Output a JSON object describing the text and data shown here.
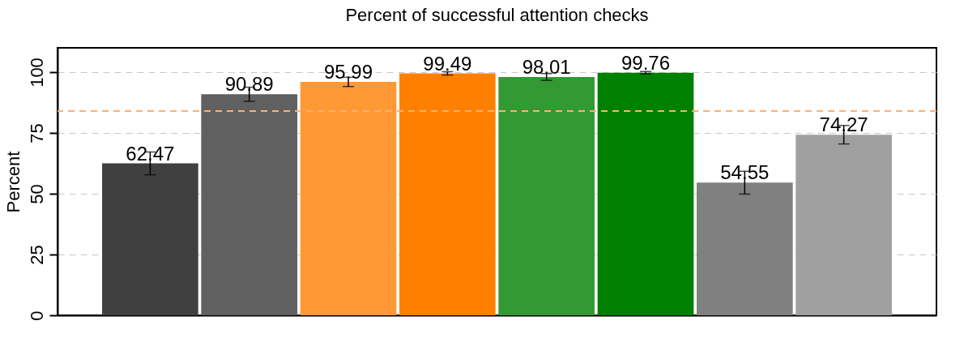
{
  "chart_data": {
    "type": "bar",
    "title": "Percent of successful attention checks",
    "ylabel": "Percent",
    "categories": [
      null,
      null,
      null,
      null,
      null,
      null,
      null,
      null
    ],
    "values": [
      62.47,
      90.89,
      95.99,
      99.49,
      98.01,
      99.76,
      54.55,
      74.27
    ],
    "errors": [
      4.7,
      2.9,
      1.9,
      0.7,
      1.4,
      0.5,
      4.7,
      3.8
    ],
    "colors": [
      "#404040",
      "#606060",
      "#ff9933",
      "#ff8000",
      "#339933",
      "#008000",
      "#808080",
      "#a0a0a0"
    ],
    "ylim": [
      0,
      110
    ],
    "yticks": [
      0,
      25,
      50,
      75,
      100
    ],
    "grid": "y",
    "data_labels": true,
    "tick_labels": "y",
    "ref_lines": [
      {
        "axis": "y",
        "value": 84,
        "color": "#ffb070",
        "line_style": "dashed"
      }
    ]
  }
}
